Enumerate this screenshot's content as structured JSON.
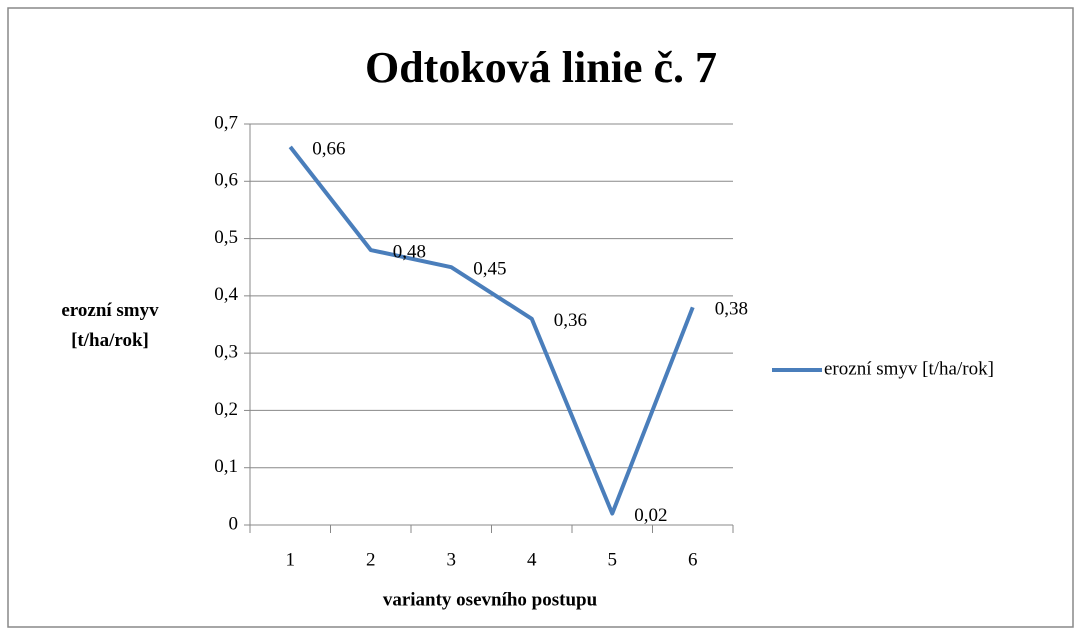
{
  "chart_data": {
    "type": "line",
    "title": "Odtoková linie č. 7",
    "x_label": "varianty osevního postupu",
    "y_label": "erozní smyv [t/ha/rok]",
    "categories": [
      "1",
      "2",
      "3",
      "4",
      "5",
      "6"
    ],
    "series": [
      {
        "name": "erozní smyv [t/ha/rok]",
        "color": "#4a7ebb",
        "values": [
          0.66,
          0.48,
          0.45,
          0.36,
          0.02,
          0.38
        ],
        "value_labels": [
          "0,66",
          "0,48",
          "0,45",
          "0,36",
          "0,02",
          "0,38"
        ]
      }
    ],
    "ylim": [
      0,
      0.7
    ],
    "yticks": [
      0,
      {
        "value": 0.1,
        "label": "0,1"
      },
      {
        "value": 0.2,
        "label": "0,2"
      },
      {
        "value": 0.3,
        "label": "0,3"
      },
      {
        "value": 0.4,
        "label": "0,4"
      },
      {
        "value": 0.5,
        "label": "0,5"
      },
      {
        "value": 0.6,
        "label": "0,6"
      },
      {
        "value": 0.7,
        "label": "0,7"
      }
    ],
    "grid": true,
    "legend": "right"
  }
}
